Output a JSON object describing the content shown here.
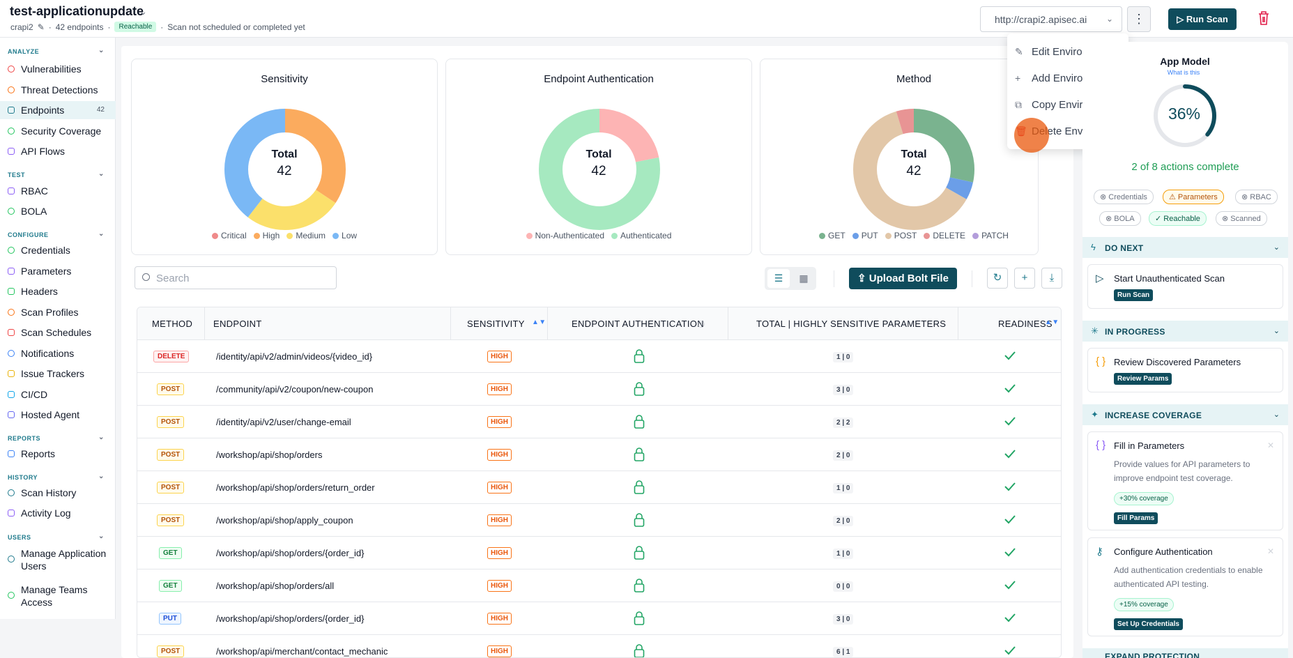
{
  "header": {
    "title": "test-applicationupdate",
    "app_slug": "crapi2",
    "endpoints_count": "42 endpoints",
    "reach_badge": "Reachable",
    "scan_status": "Scan not scheduled or completed yet",
    "env_url": "http://crapi2.apisec.ai",
    "run_scan_label": "Run Scan"
  },
  "sidebar": {
    "sections": {
      "analyze": "ANALYZE",
      "test": "TEST",
      "configure": "CONFIGURE",
      "reports": "REPORTS",
      "history": "HISTORY",
      "users": "USERS"
    },
    "items": [
      "Vulnerabilities",
      "Threat Detections",
      "Endpoints",
      "Security Coverage",
      "API Flows",
      "RBAC",
      "BOLA",
      "Credentials",
      "Parameters",
      "Headers",
      "Scan Profiles",
      "Scan Schedules",
      "Notifications",
      "Issue Trackers",
      "CI/CD",
      "Hosted Agent",
      "Reports",
      "Scan History",
      "Activity Log",
      "Manage Application Users",
      "Manage Teams Access"
    ],
    "endpoints_count": "42"
  },
  "charts": [
    {
      "title": "Sensitivity",
      "total_label": "Total",
      "total": "42",
      "legend": [
        "Critical",
        "High",
        "Medium",
        "Low"
      ]
    },
    {
      "title": "Endpoint Authentication",
      "total_label": "Total",
      "total": "42",
      "legend": [
        "Non-Authenticated",
        "Authenticated"
      ]
    },
    {
      "title": "Method",
      "total_label": "Total",
      "total": "42",
      "legend": [
        "GET",
        "PUT",
        "POST",
        "DELETE",
        "PATCH"
      ]
    }
  ],
  "colors": {
    "critical": "#ef8a8a",
    "high": "#fbab5e",
    "medium": "#fbe06b",
    "low": "#7ab8f5",
    "nonauth": "#fdb4b4",
    "auth": "#a6e9c0",
    "get": "#7ab38f",
    "put": "#6b9ee8",
    "post": "#e2c7a8",
    "delete": "#e89494",
    "patch": "#b39ddb",
    "accent": "#0f4c5c"
  },
  "toolbar": {
    "search_placeholder": "Search",
    "upload_label": "Upload Bolt File"
  },
  "table": {
    "headers": [
      "METHOD",
      "ENDPOINT",
      "SENSITIVITY",
      "ENDPOINT AUTHENTICATION",
      "TOTAL | HIGHLY SENSITIVE PARAMETERS",
      "READINESS"
    ],
    "rows": [
      {
        "method": "DELETE",
        "endpoint": "/identity/api/v2/admin/videos/{video_id}",
        "sensitivity": "HIGH",
        "params": "1 | 0"
      },
      {
        "method": "POST",
        "endpoint": "/community/api/v2/coupon/new-coupon",
        "sensitivity": "HIGH",
        "params": "3 | 0"
      },
      {
        "method": "POST",
        "endpoint": "/identity/api/v2/user/change-email",
        "sensitivity": "HIGH",
        "params": "2 | 2"
      },
      {
        "method": "POST",
        "endpoint": "/workshop/api/shop/orders",
        "sensitivity": "HIGH",
        "params": "2 | 0"
      },
      {
        "method": "POST",
        "endpoint": "/workshop/api/shop/orders/return_order",
        "sensitivity": "HIGH",
        "params": "1 | 0"
      },
      {
        "method": "POST",
        "endpoint": "/workshop/api/shop/apply_coupon",
        "sensitivity": "HIGH",
        "params": "2 | 0"
      },
      {
        "method": "GET",
        "endpoint": "/workshop/api/shop/orders/{order_id}",
        "sensitivity": "HIGH",
        "params": "1 | 0"
      },
      {
        "method": "GET",
        "endpoint": "/workshop/api/shop/orders/all",
        "sensitivity": "HIGH",
        "params": "0 | 0"
      },
      {
        "method": "PUT",
        "endpoint": "/workshop/api/shop/orders/{order_id}",
        "sensitivity": "HIGH",
        "params": "3 | 0"
      },
      {
        "method": "POST",
        "endpoint": "/workshop/api/merchant/contact_mechanic",
        "sensitivity": "HIGH",
        "params": "6 | 1"
      }
    ]
  },
  "env_menu": {
    "items": [
      "Edit Environment",
      "Add Environment",
      "Copy Environment ID",
      "Delete Environment"
    ]
  },
  "app_model": {
    "title": "App Model",
    "what_is": "What is this",
    "progress_pct": 36,
    "pct_label": "36%",
    "actions": "2 of 8 actions complete",
    "chips": [
      "Credentials",
      "Parameters",
      "RBAC",
      "BOLA",
      "Reachable",
      "Scanned"
    ]
  },
  "do_next": {
    "title": "DO NEXT",
    "card_title": "Start Unauthenticated Scan",
    "card_btn": "Run Scan"
  },
  "in_progress": {
    "title": "IN PROGRESS",
    "card_title": "Review Discovered Parameters",
    "card_btn": "Review Params"
  },
  "increase": {
    "title": "INCREASE COVERAGE",
    "card1": {
      "title": "Fill in Parameters",
      "desc": "Provide values for API parameters to improve endpoint test coverage.",
      "coverage": "+30% coverage",
      "btn": "Fill Params"
    },
    "card2": {
      "title": "Configure Authentication",
      "desc": "Add authentication credentials to enable authenticated API testing.",
      "coverage": "+15% coverage",
      "btn": "Set Up Credentials"
    }
  },
  "next_band": "EXPAND PROTECTION"
}
